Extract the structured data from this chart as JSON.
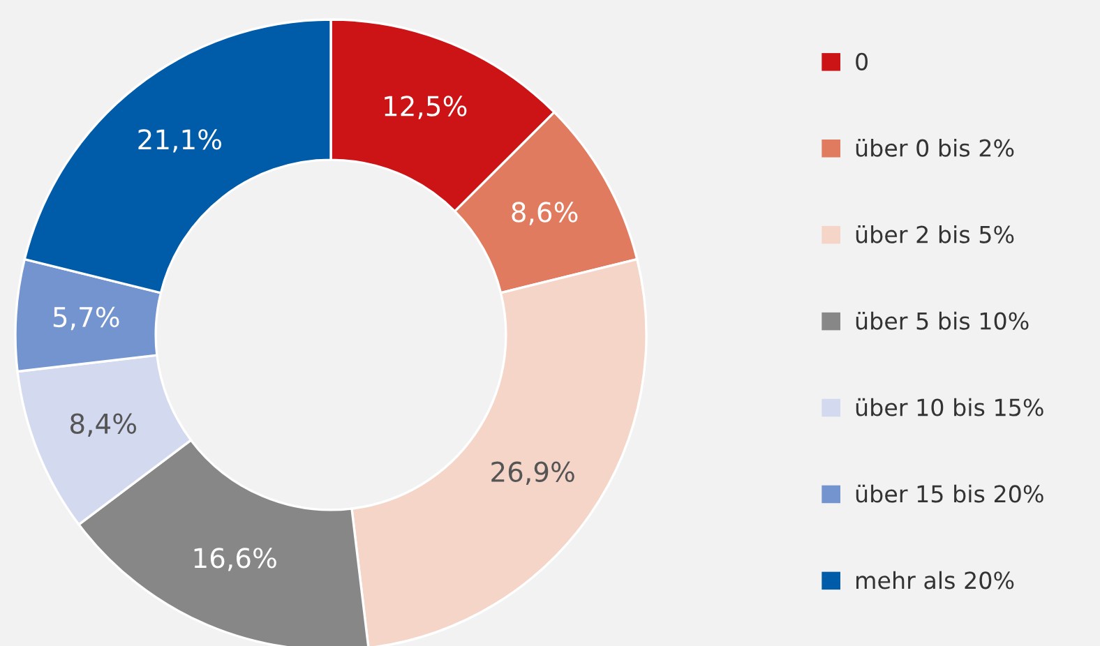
{
  "chart_data": {
    "type": "donut",
    "categories": [
      "0",
      "über 0 bis 2%",
      "über 2 bis 5%",
      "über 5 bis 10%",
      "über 10 bis 15%",
      "über 15 bis 20%",
      "mehr als 20%"
    ],
    "values": [
      12.5,
      8.6,
      26.9,
      16.6,
      8.4,
      5.7,
      21.1
    ],
    "value_labels": [
      "12,5%",
      "8,6%",
      "26,9%",
      "16,6%",
      "8,4%",
      "5,7%",
      "21,1%"
    ],
    "colors": [
      "#cc1417",
      "#e07b60",
      "#f5d5c8",
      "#878787",
      "#d3d9ef",
      "#7394cf",
      "#005ca9"
    ],
    "legend": "right"
  }
}
